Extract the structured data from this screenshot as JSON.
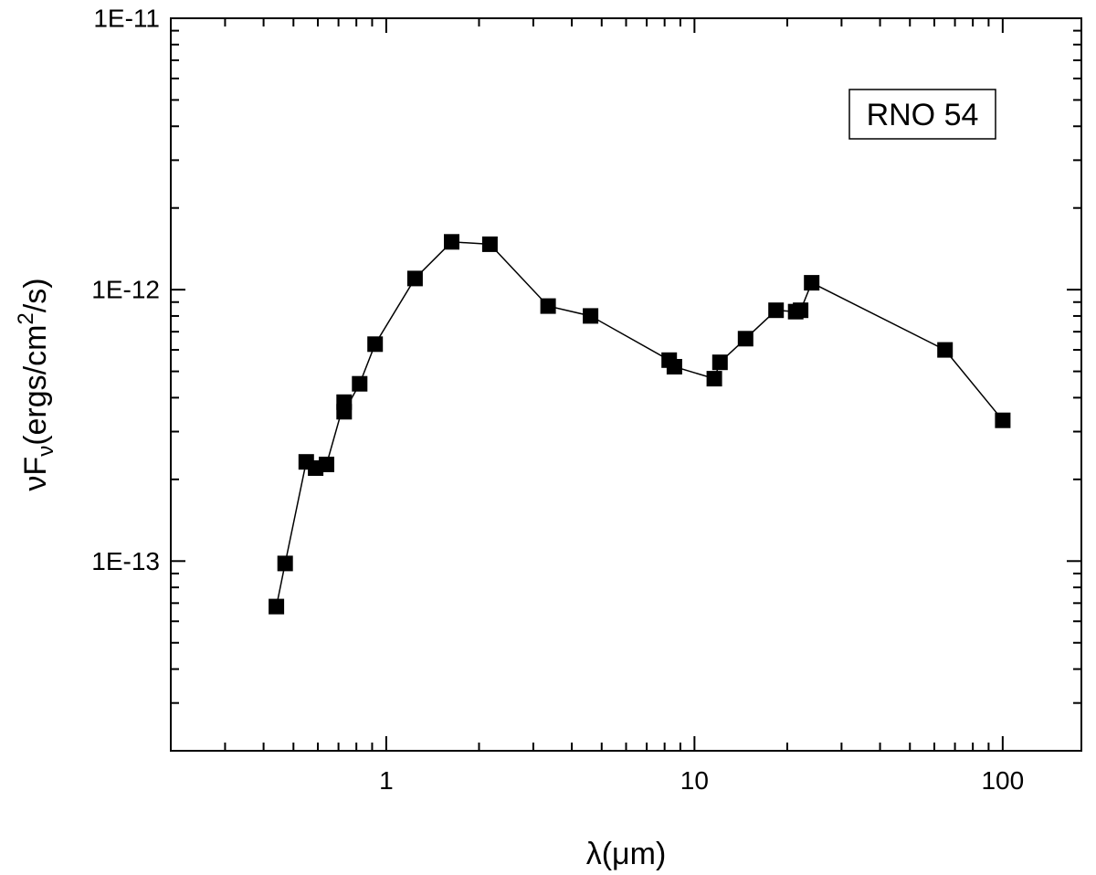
{
  "chart_data": {
    "type": "scatter",
    "x_scale": "log",
    "y_scale": "log",
    "xlim": [
      0.2,
      180
    ],
    "ylim": [
      2e-14,
      1e-11
    ],
    "x_ticks": [
      {
        "value": 1,
        "label": "1"
      },
      {
        "value": 10,
        "label": "10"
      },
      {
        "value": 100,
        "label": "100"
      }
    ],
    "y_ticks": [
      {
        "value": 1e-13,
        "label": "1E-13"
      },
      {
        "value": 1e-12,
        "label": "1E-12"
      },
      {
        "value": 1e-11,
        "label": "1E-11"
      }
    ],
    "xlabel_parts": {
      "main": "λ(μm)"
    },
    "ylabel_parts": {
      "pre": "νF",
      "sub": "ν",
      "mid": "(ergs/cm",
      "sup": "2",
      "post": "/s)"
    },
    "grid": false,
    "annotation": "RNO 54",
    "series": [
      {
        "connected": true,
        "marker": "filled-square",
        "color": "#000000",
        "points": [
          [
            0.44,
            6.8e-14
          ],
          [
            0.47,
            9.8e-14
          ],
          [
            0.55,
            2.32e-13
          ],
          [
            0.59,
            2.2e-13
          ],
          [
            0.64,
            2.27e-13
          ],
          [
            0.73,
            3.85e-13
          ],
          [
            0.73,
            3.55e-13
          ],
          [
            0.82,
            4.5e-13
          ],
          [
            0.92,
            6.3e-13
          ],
          [
            1.24,
            1.1e-12
          ],
          [
            1.63,
            1.5e-12
          ],
          [
            2.17,
            1.47e-12
          ],
          [
            3.35,
            8.7e-13
          ],
          [
            4.6,
            8e-13
          ],
          [
            8.28,
            5.5e-13
          ],
          [
            8.61,
            5.2e-13
          ],
          [
            11.6,
            4.7e-13
          ],
          [
            12.1,
            5.4e-13
          ],
          [
            14.65,
            6.6e-13
          ],
          [
            18.4,
            8.4e-13
          ],
          [
            21.3,
            8.3e-13
          ],
          [
            22.1,
            8.4e-13
          ],
          [
            24,
            1.06e-12
          ],
          [
            65,
            6e-13
          ],
          [
            100,
            3.3e-13
          ]
        ]
      }
    ]
  }
}
